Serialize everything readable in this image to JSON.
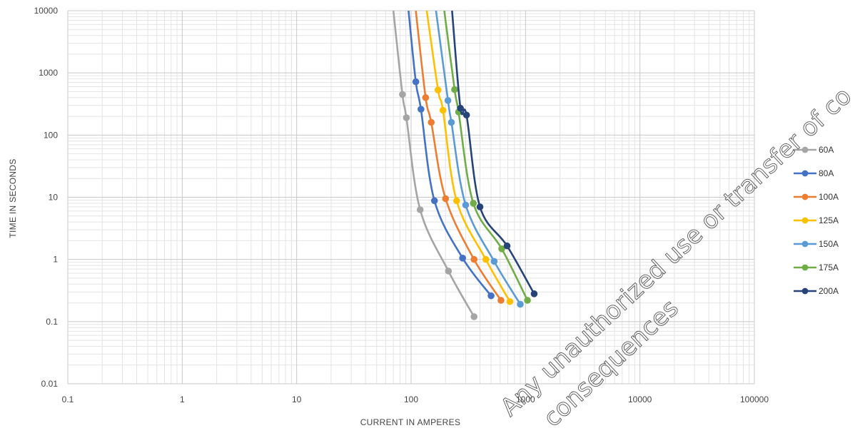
{
  "chart_data": {
    "type": "line",
    "title": "",
    "xlabel": "CURRENT IN AMPERES",
    "ylabel": "TIME IN SECONDS",
    "x_scale": "log",
    "y_scale": "log",
    "xlim": [
      0.1,
      100000
    ],
    "ylim": [
      0.01,
      10000
    ],
    "x_ticks": [
      "0.1",
      "1",
      "10",
      "100",
      "1000",
      "10000",
      "100000"
    ],
    "y_ticks": [
      "10000",
      "1000",
      "100",
      "10",
      "1",
      "0.1",
      "0.01"
    ],
    "grid": true,
    "legend_position": "right",
    "series": [
      {
        "name": "60A",
        "color": "#a5a5a5",
        "curve": [
          [
            70,
            10000
          ],
          [
            84,
            450
          ],
          [
            91,
            190
          ],
          [
            120,
            6.3
          ],
          [
            212,
            0.65
          ],
          [
            355,
            0.12
          ]
        ],
        "markers": [
          [
            84,
            450
          ],
          [
            91,
            190
          ],
          [
            120,
            6.3
          ],
          [
            212,
            0.65
          ],
          [
            355,
            0.12
          ]
        ]
      },
      {
        "name": "80A",
        "color": "#4472c4",
        "curve": [
          [
            95,
            10000
          ],
          [
            110,
            720
          ],
          [
            122,
            260
          ],
          [
            160,
            8.8
          ],
          [
            282,
            1.05
          ],
          [
            500,
            0.26
          ]
        ],
        "markers": [
          [
            110,
            720
          ],
          [
            122,
            260
          ],
          [
            160,
            8.8
          ],
          [
            282,
            1.05
          ],
          [
            500,
            0.26
          ]
        ]
      },
      {
        "name": "100A",
        "color": "#ed7d31",
        "curve": [
          [
            110,
            10000
          ],
          [
            134,
            400
          ],
          [
            150,
            160
          ],
          [
            200,
            9.5
          ],
          [
            355,
            1.0
          ],
          [
            610,
            0.22
          ]
        ],
        "markers": [
          [
            134,
            400
          ],
          [
            150,
            160
          ],
          [
            200,
            9.5
          ],
          [
            355,
            1.0
          ],
          [
            610,
            0.22
          ]
        ]
      },
      {
        "name": "125A",
        "color": "#ffc000",
        "curve": [
          [
            137,
            10000
          ],
          [
            172,
            530
          ],
          [
            190,
            250
          ],
          [
            250,
            8.8
          ],
          [
            450,
            1.0
          ],
          [
            730,
            0.21
          ]
        ],
        "markers": [
          [
            172,
            530
          ],
          [
            190,
            250
          ],
          [
            250,
            8.8
          ],
          [
            450,
            1.0
          ],
          [
            730,
            0.21
          ]
        ]
      },
      {
        "name": "150A",
        "color": "#5b9bd5",
        "curve": [
          [
            165,
            10000
          ],
          [
            210,
            360
          ],
          [
            225,
            160
          ],
          [
            300,
            7.5
          ],
          [
            532,
            0.93
          ],
          [
            900,
            0.19
          ]
        ],
        "markers": [
          [
            210,
            360
          ],
          [
            225,
            160
          ],
          [
            300,
            7.5
          ],
          [
            532,
            0.93
          ],
          [
            900,
            0.19
          ]
        ]
      },
      {
        "name": "175A",
        "color": "#70ad47",
        "curve": [
          [
            195,
            10000
          ],
          [
            240,
            540
          ],
          [
            260,
            235
          ],
          [
            350,
            8.0
          ],
          [
            620,
            1.48
          ],
          [
            1040,
            0.22
          ]
        ],
        "markers": [
          [
            240,
            540
          ],
          [
            260,
            235
          ],
          [
            350,
            8.0
          ],
          [
            620,
            1.48
          ],
          [
            1040,
            0.22
          ]
        ]
      },
      {
        "name": "200A",
        "color": "#264478",
        "curve": [
          [
            228,
            10000
          ],
          [
            270,
            270
          ],
          [
            305,
            210
          ],
          [
            400,
            7.0
          ],
          [
            690,
            1.65
          ],
          [
            1190,
            0.28
          ]
        ],
        "markers": [
          [
            270,
            270
          ],
          [
            305,
            210
          ],
          [
            400,
            7.0
          ],
          [
            690,
            1.65
          ],
          [
            1190,
            0.28
          ]
        ]
      }
    ]
  },
  "watermark": {
    "line1": "Any unauthorized use or transfer of co",
    "line2": "consequences"
  }
}
